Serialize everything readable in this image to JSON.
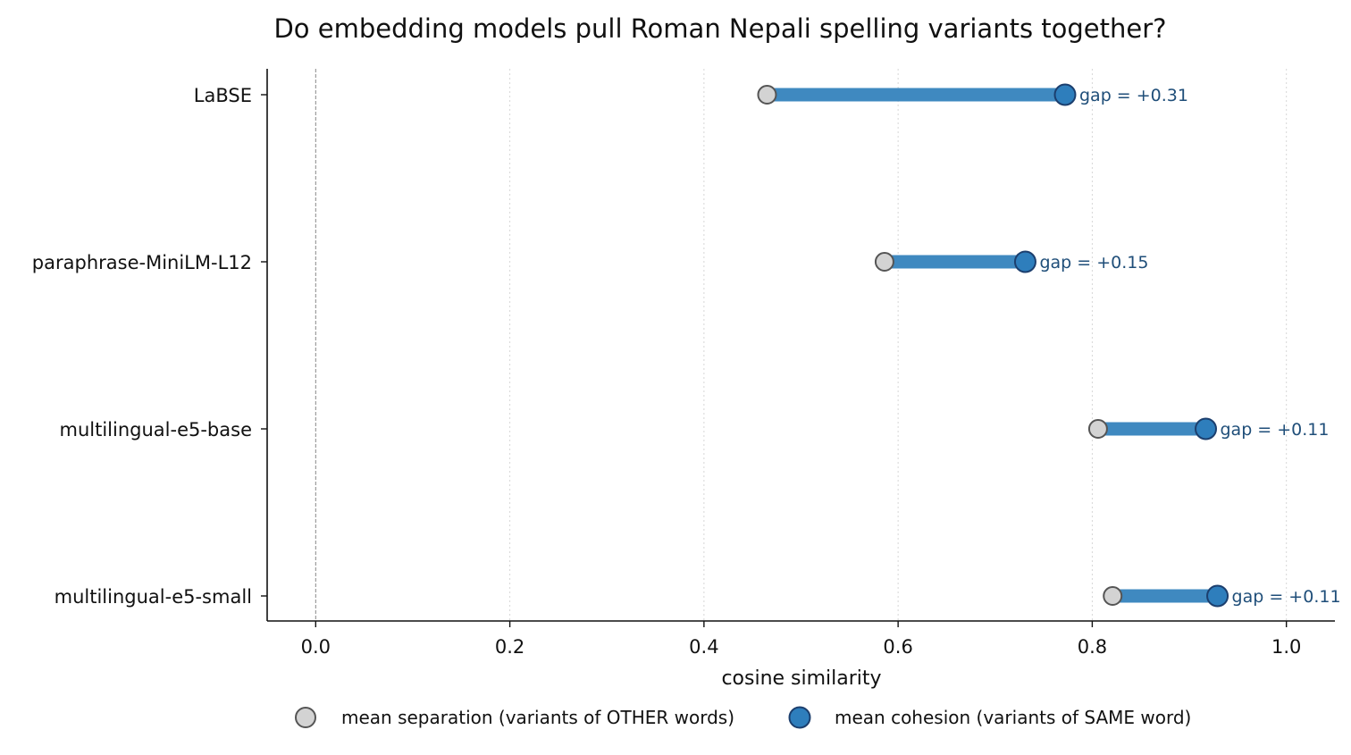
{
  "chart_data": {
    "type": "dumbbell",
    "title": "Do embedding models pull Roman Nepali spelling variants together?",
    "xlabel": "cosine similarity",
    "ylabel": "",
    "xlim": [
      -0.05,
      1.05
    ],
    "xticks": [
      0.0,
      0.2,
      0.4,
      0.6,
      0.8,
      1.0
    ],
    "xtick_labels": [
      "0.0",
      "0.2",
      "0.4",
      "0.6",
      "0.8",
      "1.0"
    ],
    "grid": "x dotted",
    "reference_line_x": 0.0,
    "categories": [
      "LaBSE",
      "paraphrase-MiniLM-L12",
      "multilingual-e5-base",
      "multilingual-e5-small"
    ],
    "series": [
      {
        "name": "mean separation (variants of OTHER words)",
        "color": "#d3d3d3",
        "edge_color": "#555555",
        "values": [
          0.465,
          0.586,
          0.806,
          0.821
        ]
      },
      {
        "name": "mean cohesion (variants of SAME word)",
        "color": "#2e7ebc",
        "edge_color": "#1c3f6e",
        "values": [
          0.772,
          0.731,
          0.917,
          0.929
        ]
      }
    ],
    "gap_labels": [
      "gap = +0.31",
      "gap = +0.15",
      "gap = +0.11",
      "gap = +0.11"
    ],
    "connector_color": "#3f89c0",
    "legend_position": "bottom-center"
  }
}
